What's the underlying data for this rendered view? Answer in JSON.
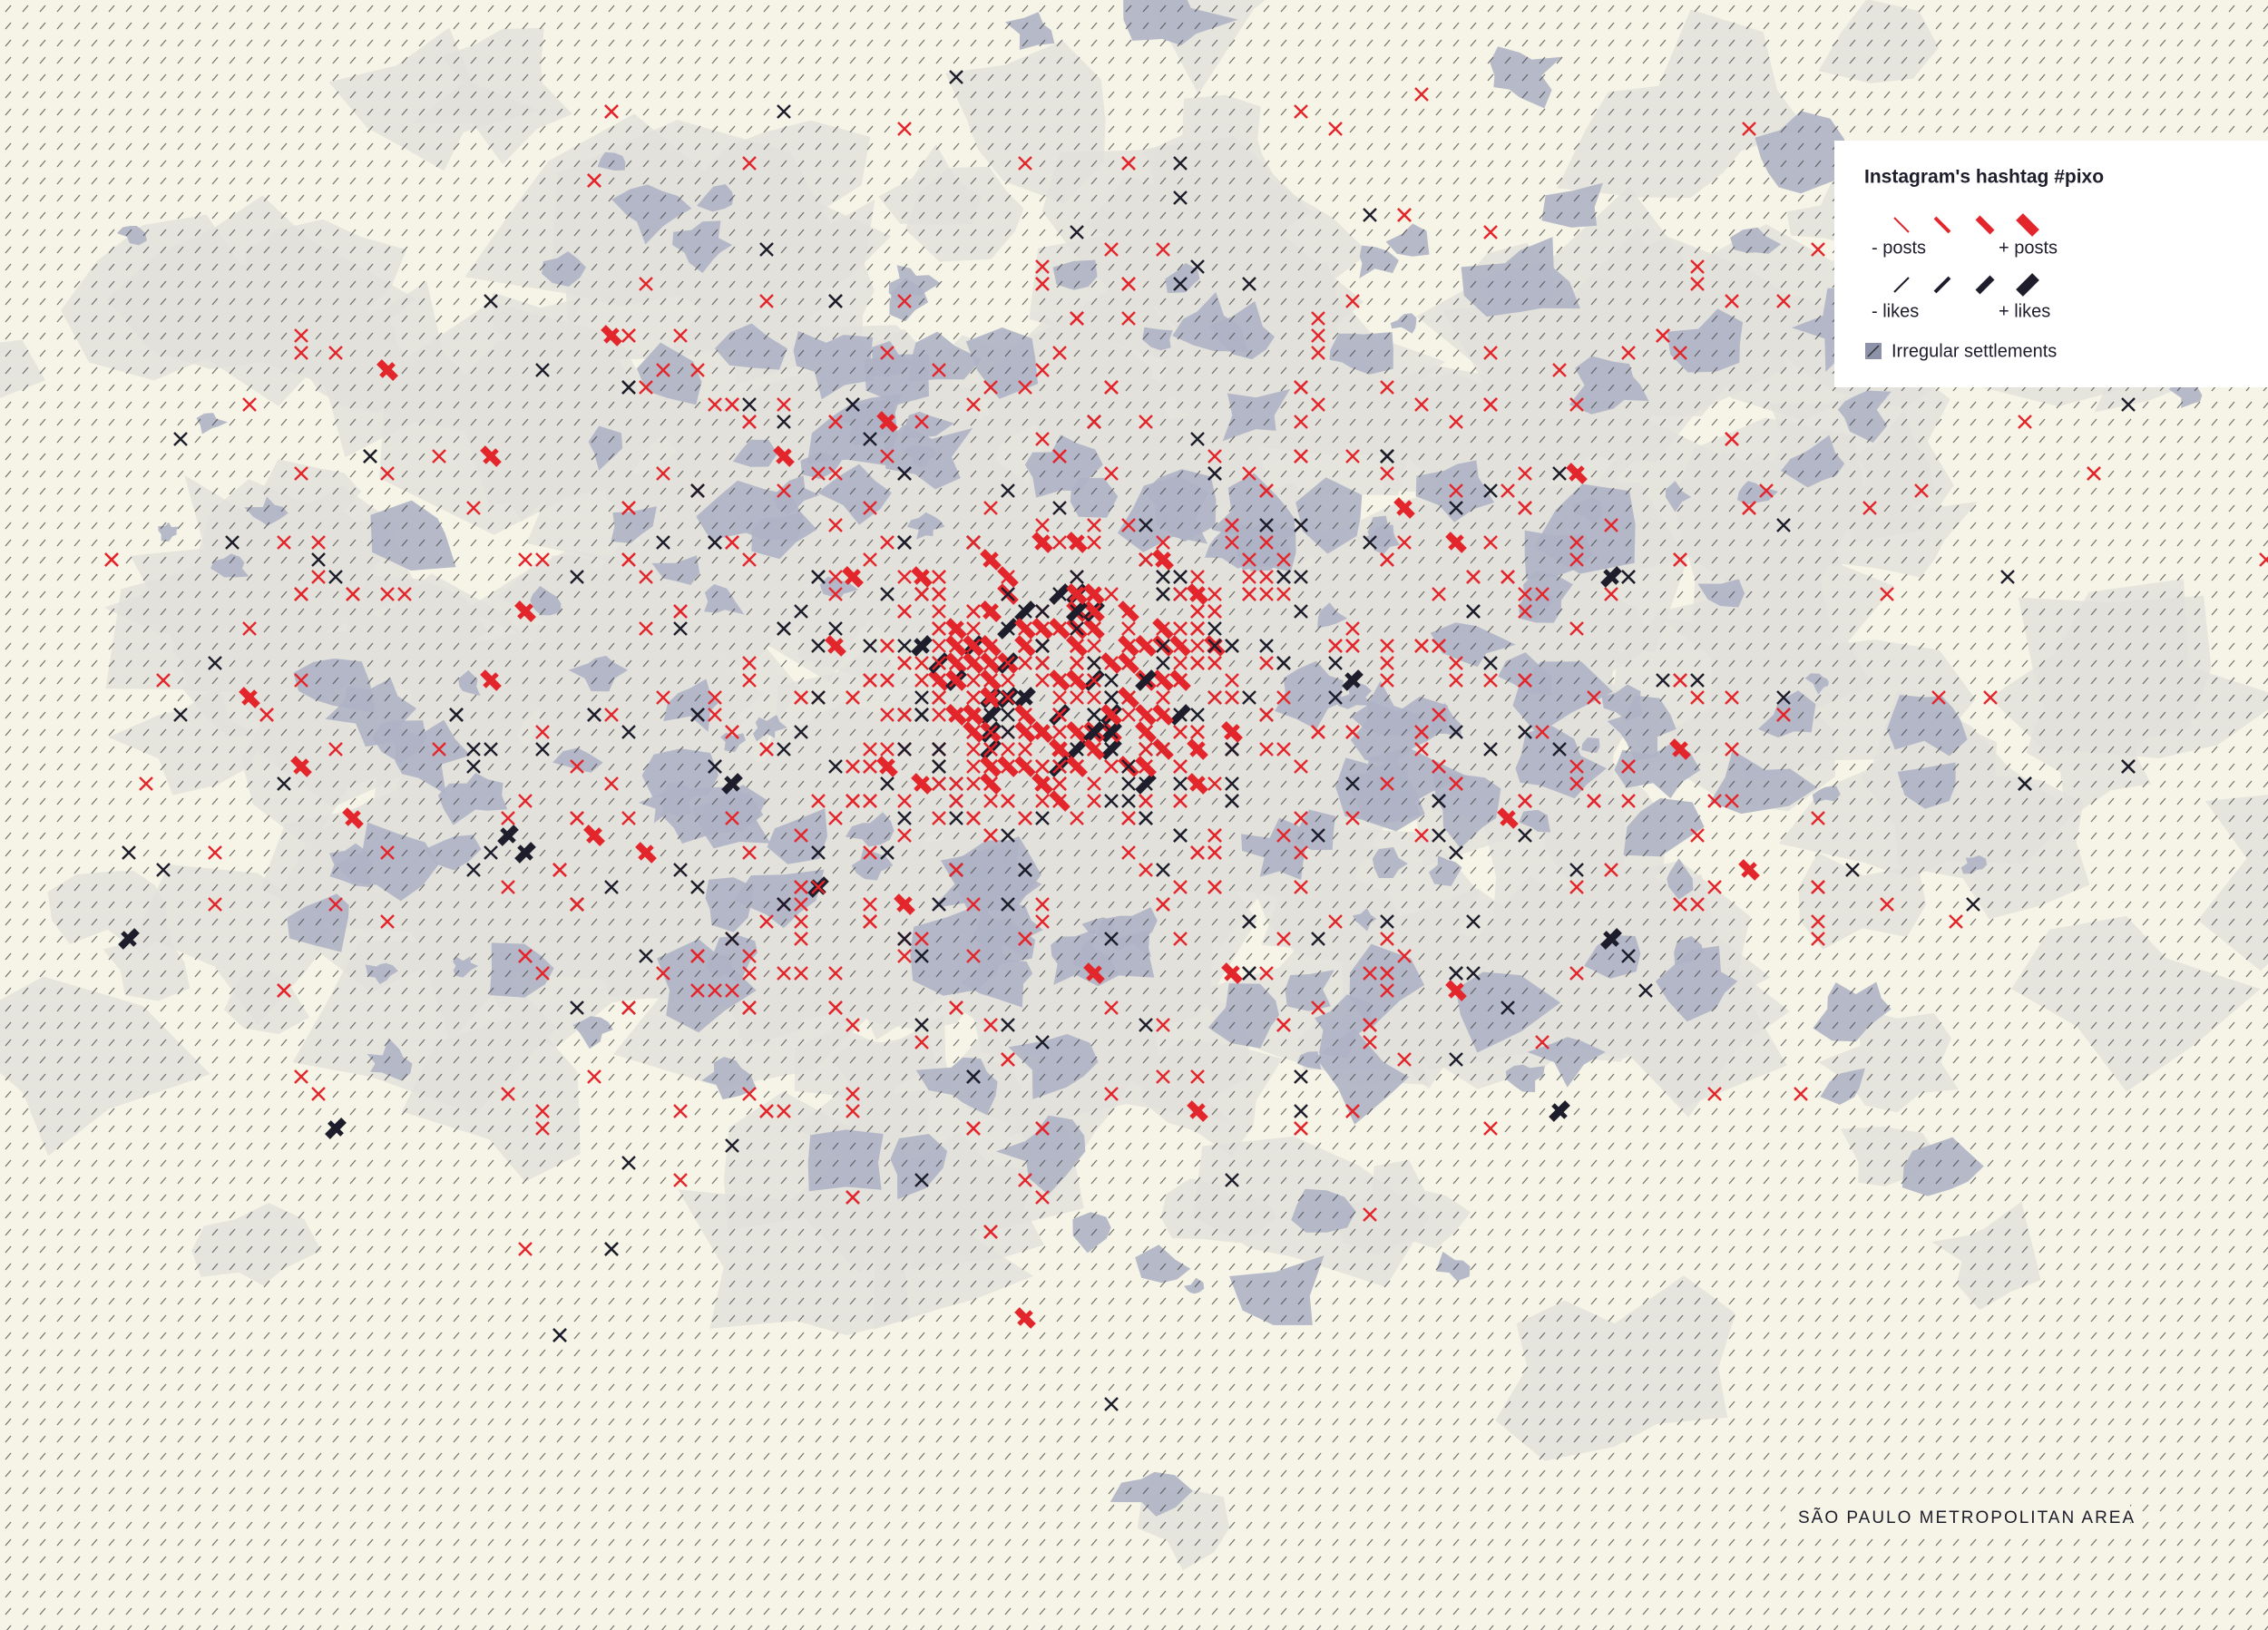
{
  "legend": {
    "title": "Instagram's hashtag #pixo",
    "items": [
      {
        "label": "- posts"
      },
      {
        "label": "+ posts"
      },
      {
        "label": "- likes"
      },
      {
        "label": "+ likes"
      },
      {
        "label": "Irregular settlements"
      }
    ]
  },
  "caption": "SÃO PAULO METROPOLITAN AREA"
}
